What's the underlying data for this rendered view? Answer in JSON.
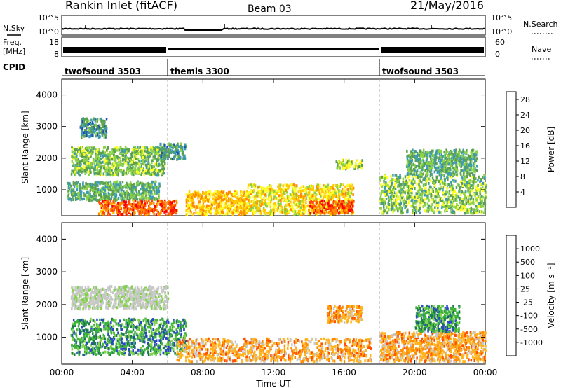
{
  "header": {
    "title": "Rankin Inlet (fitACF)",
    "beam": "Beam 03",
    "date": "21/May/2016"
  },
  "status_panels": {
    "nsky_label": "N.Sky",
    "nsearch_label": "N.Search",
    "nsky_ticks": [
      "10^5",
      "10^0"
    ],
    "nsearch_ticks": [
      "10^5",
      "10^0"
    ],
    "freq_label_1": "Freq.",
    "freq_label_2": "[MHz]",
    "freq_ticks": [
      "18",
      "8"
    ],
    "nave_label": "Nave",
    "nave_ticks": [
      "60",
      "0"
    ],
    "cpid_label": "CPID",
    "cpid_segments": [
      {
        "name": "twofsound 3503",
        "start_hour": 0,
        "end_hour": 6
      },
      {
        "name": "themis 3300",
        "start_hour": 6,
        "end_hour": 18
      },
      {
        "name": "twofsound 3503",
        "start_hour": 18,
        "end_hour": 24
      }
    ]
  },
  "chart_data": [
    {
      "type": "heatmap",
      "quantity": "Power",
      "ylabel": "Slant Range [km]",
      "xlabel": "Time UT",
      "x_ticks": [
        "00:00",
        "04:00",
        "08:00",
        "12:00",
        "16:00",
        "20:00",
        "00:00"
      ],
      "xlim_hours": [
        0,
        24
      ],
      "y_ticks": [
        1000,
        2000,
        3000,
        4000
      ],
      "ylim": [
        180,
        4500
      ],
      "colorbar": {
        "label": "Power [dB]",
        "ticks": [
          "4",
          "8",
          "12",
          "16",
          "20",
          "24",
          "28"
        ],
        "range": [
          0,
          30
        ],
        "colors": [
          "#1a1aff",
          "#1e4fb4",
          "#3c9bb4",
          "#5aa050",
          "#8cd246",
          "#ffff28",
          "#ffc800",
          "#ff8c00",
          "#ff4b00",
          "#ff0000"
        ]
      },
      "features": [
        {
          "hours": [
            0.3,
            5.5
          ],
          "range_km": [
            700,
            1300
          ],
          "level": 10
        },
        {
          "hours": [
            0.5,
            5.8
          ],
          "range_km": [
            1500,
            2400
          ],
          "level": 12
        },
        {
          "hours": [
            1.0,
            2.5
          ],
          "range_km": [
            2700,
            3300
          ],
          "level": 8
        },
        {
          "hours": [
            2.0,
            6.5
          ],
          "range_km": [
            250,
            700
          ],
          "level": 26
        },
        {
          "hours": [
            5.5,
            7.0
          ],
          "range_km": [
            2000,
            2500
          ],
          "level": 8
        },
        {
          "hours": [
            7.0,
            10.5
          ],
          "range_km": [
            250,
            1000
          ],
          "level": 20
        },
        {
          "hours": [
            10.5,
            16.5
          ],
          "range_km": [
            250,
            1200
          ],
          "level": 18
        },
        {
          "hours": [
            14.0,
            16.5
          ],
          "range_km": [
            300,
            700
          ],
          "level": 26
        },
        {
          "hours": [
            15.5,
            17.0
          ],
          "range_km": [
            1700,
            2000
          ],
          "level": 14
        },
        {
          "hours": [
            18.0,
            24.0
          ],
          "range_km": [
            300,
            1500
          ],
          "level": 12
        },
        {
          "hours": [
            19.5,
            23.5
          ],
          "range_km": [
            1500,
            2300
          ],
          "level": 10
        }
      ]
    },
    {
      "type": "heatmap",
      "quantity": "Velocity",
      "ylabel": "Slant Range [km]",
      "xlabel": "Time UT",
      "x_ticks": [
        "00:00",
        "04:00",
        "08:00",
        "12:00",
        "16:00",
        "20:00",
        "00:00"
      ],
      "xlim_hours": [
        0,
        24
      ],
      "y_ticks": [
        1000,
        2000,
        3000,
        4000
      ],
      "ylim": [
        180,
        4500
      ],
      "colorbar": {
        "label": "Velocity [m s^-1]",
        "ticks": [
          "1000",
          "500",
          "100",
          "25",
          "-25",
          "-100",
          "-500",
          "-1000"
        ],
        "colors": [
          "#2846c8",
          "#1e7850",
          "#3cb43c",
          "#82d24b",
          "#c8c8c8",
          "#ffb41e",
          "#ff8c00",
          "#ff5000",
          "#e61414"
        ]
      },
      "features": [
        {
          "hours": [
            0.5,
            6.0
          ],
          "range_km": [
            1900,
            2600
          ],
          "class": "ground"
        },
        {
          "hours": [
            0.5,
            7.0
          ],
          "range_km": [
            500,
            1600
          ],
          "class": "toward"
        },
        {
          "hours": [
            6.5,
            17.5
          ],
          "range_km": [
            300,
            1000
          ],
          "class": "away"
        },
        {
          "hours": [
            15.0,
            17.0
          ],
          "range_km": [
            1500,
            2000
          ],
          "class": "away"
        },
        {
          "hours": [
            18.0,
            24.0
          ],
          "range_km": [
            300,
            1200
          ],
          "class": "away"
        },
        {
          "hours": [
            20.0,
            22.5
          ],
          "range_km": [
            1200,
            2000
          ],
          "class": "toward"
        }
      ]
    }
  ]
}
